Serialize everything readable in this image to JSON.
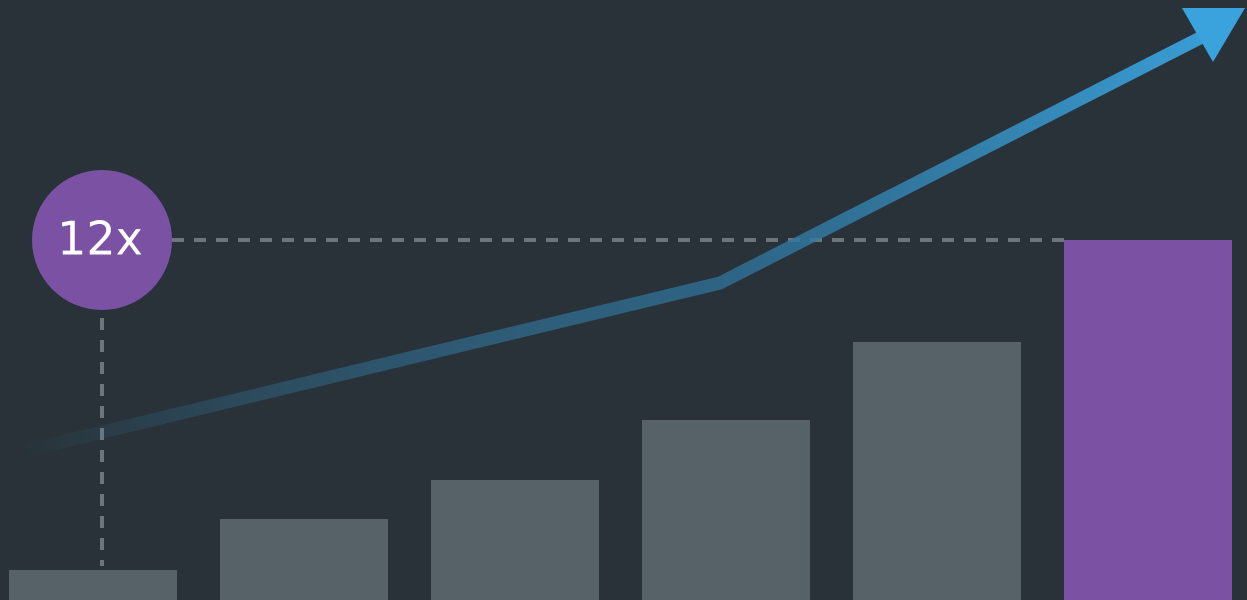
{
  "chart_data": {
    "type": "bar",
    "values": [
      1,
      2.7,
      4,
      6,
      8.6,
      12
    ],
    "value_labels": [
      null,
      null,
      null,
      null,
      null,
      "12x"
    ],
    "colors": [
      "#566168",
      "#566168",
      "#566168",
      "#566168",
      "#566168",
      "#7b52a3"
    ],
    "ylim": [
      0,
      20
    ]
  }
}
